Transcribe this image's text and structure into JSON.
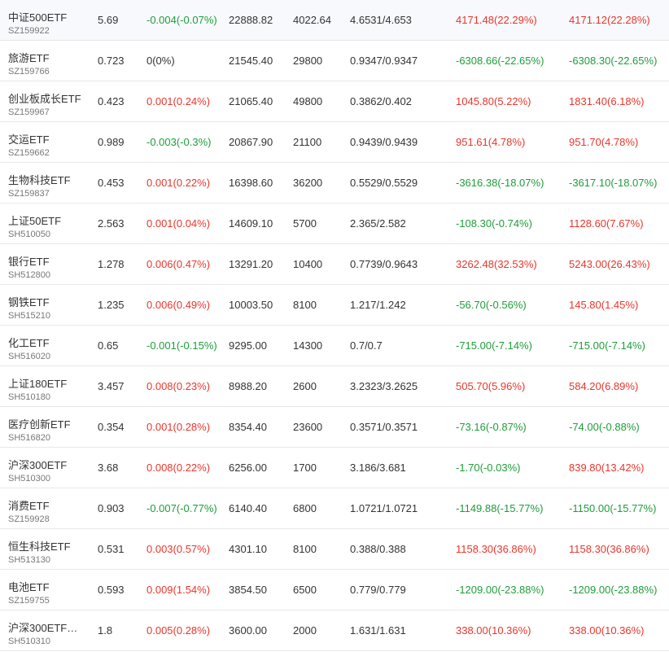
{
  "colors": {
    "up": "#e8362c",
    "down": "#1f9d3a",
    "flat": "#333333"
  },
  "rows": [
    {
      "name": "中证500ETF",
      "code": "SZ159922",
      "price": "5.69",
      "change": "-0.004(-0.07%)",
      "change_dir": "down",
      "amount": "22888.82",
      "volume": "4022.64",
      "nav": "4.6531/4.653",
      "profit1": "4171.48(22.29%)",
      "profit1_dir": "up",
      "profit2": "4171.12(22.28%)",
      "profit2_dir": "up"
    },
    {
      "name": "旅游ETF",
      "code": "SZ159766",
      "price": "0.723",
      "change": "0(0%)",
      "change_dir": "flat",
      "amount": "21545.40",
      "volume": "29800",
      "nav": "0.9347/0.9347",
      "profit1": "-6308.66(-22.65%)",
      "profit1_dir": "down",
      "profit2": "-6308.30(-22.65%)",
      "profit2_dir": "down"
    },
    {
      "name": "创业板成长ETF",
      "code": "SZ159967",
      "price": "0.423",
      "change": "0.001(0.24%)",
      "change_dir": "up",
      "amount": "21065.40",
      "volume": "49800",
      "nav": "0.3862/0.402",
      "profit1": "1045.80(5.22%)",
      "profit1_dir": "up",
      "profit2": "1831.40(6.18%)",
      "profit2_dir": "up"
    },
    {
      "name": "交运ETF",
      "code": "SZ159662",
      "price": "0.989",
      "change": "-0.003(-0.3%)",
      "change_dir": "down",
      "amount": "20867.90",
      "volume": "21100",
      "nav": "0.9439/0.9439",
      "profit1": "951.61(4.78%)",
      "profit1_dir": "up",
      "profit2": "951.70(4.78%)",
      "profit2_dir": "up"
    },
    {
      "name": "生物科技ETF",
      "code": "SZ159837",
      "price": "0.453",
      "change": "0.001(0.22%)",
      "change_dir": "up",
      "amount": "16398.60",
      "volume": "36200",
      "nav": "0.5529/0.5529",
      "profit1": "-3616.38(-18.07%)",
      "profit1_dir": "down",
      "profit2": "-3617.10(-18.07%)",
      "profit2_dir": "down"
    },
    {
      "name": "上证50ETF",
      "code": "SH510050",
      "price": "2.563",
      "change": "0.001(0.04%)",
      "change_dir": "up",
      "amount": "14609.10",
      "volume": "5700",
      "nav": "2.365/2.582",
      "profit1": "-108.30(-0.74%)",
      "profit1_dir": "down",
      "profit2": "1128.60(7.67%)",
      "profit2_dir": "up"
    },
    {
      "name": "银行ETF",
      "code": "SH512800",
      "price": "1.278",
      "change": "0.006(0.47%)",
      "change_dir": "up",
      "amount": "13291.20",
      "volume": "10400",
      "nav": "0.7739/0.9643",
      "profit1": "3262.48(32.53%)",
      "profit1_dir": "up",
      "profit2": "5243.00(26.43%)",
      "profit2_dir": "up"
    },
    {
      "name": "钢铁ETF",
      "code": "SH515210",
      "price": "1.235",
      "change": "0.006(0.49%)",
      "change_dir": "up",
      "amount": "10003.50",
      "volume": "8100",
      "nav": "1.217/1.242",
      "profit1": "-56.70(-0.56%)",
      "profit1_dir": "down",
      "profit2": "145.80(1.45%)",
      "profit2_dir": "up"
    },
    {
      "name": "化工ETF",
      "code": "SH516020",
      "price": "0.65",
      "change": "-0.001(-0.15%)",
      "change_dir": "down",
      "amount": "9295.00",
      "volume": "14300",
      "nav": "0.7/0.7",
      "profit1": "-715.00(-7.14%)",
      "profit1_dir": "down",
      "profit2": "-715.00(-7.14%)",
      "profit2_dir": "down"
    },
    {
      "name": "上证180ETF",
      "code": "SH510180",
      "price": "3.457",
      "change": "0.008(0.23%)",
      "change_dir": "up",
      "amount": "8988.20",
      "volume": "2600",
      "nav": "3.2323/3.2625",
      "profit1": "505.70(5.96%)",
      "profit1_dir": "up",
      "profit2": "584.20(6.89%)",
      "profit2_dir": "up"
    },
    {
      "name": "医疗创新ETF",
      "code": "SH516820",
      "price": "0.354",
      "change": "0.001(0.28%)",
      "change_dir": "up",
      "amount": "8354.40",
      "volume": "23600",
      "nav": "0.3571/0.3571",
      "profit1": "-73.16(-0.87%)",
      "profit1_dir": "down",
      "profit2": "-74.00(-0.88%)",
      "profit2_dir": "down"
    },
    {
      "name": "沪深300ETF",
      "code": "SH510300",
      "price": "3.68",
      "change": "0.008(0.22%)",
      "change_dir": "up",
      "amount": "6256.00",
      "volume": "1700",
      "nav": "3.186/3.681",
      "profit1": "-1.70(-0.03%)",
      "profit1_dir": "down",
      "profit2": "839.80(13.42%)",
      "profit2_dir": "up"
    },
    {
      "name": "消费ETF",
      "code": "SZ159928",
      "price": "0.903",
      "change": "-0.007(-0.77%)",
      "change_dir": "down",
      "amount": "6140.40",
      "volume": "6800",
      "nav": "1.0721/1.0721",
      "profit1": "-1149.88(-15.77%)",
      "profit1_dir": "down",
      "profit2": "-1150.00(-15.77%)",
      "profit2_dir": "down"
    },
    {
      "name": "恒生科技ETF",
      "code": "SH513130",
      "price": "0.531",
      "change": "0.003(0.57%)",
      "change_dir": "up",
      "amount": "4301.10",
      "volume": "8100",
      "nav": "0.388/0.388",
      "profit1": "1158.30(36.86%)",
      "profit1_dir": "up",
      "profit2": "1158.30(36.86%)",
      "profit2_dir": "up"
    },
    {
      "name": "电池ETF",
      "code": "SZ159755",
      "price": "0.593",
      "change": "0.009(1.54%)",
      "change_dir": "up",
      "amount": "3854.50",
      "volume": "6500",
      "nav": "0.779/0.779",
      "profit1": "-1209.00(-23.88%)",
      "profit1_dir": "down",
      "profit2": "-1209.00(-23.88%)",
      "profit2_dir": "down"
    },
    {
      "name": "沪深300ETF…",
      "code": "SH510310",
      "price": "1.8",
      "change": "0.005(0.28%)",
      "change_dir": "up",
      "amount": "3600.00",
      "volume": "2000",
      "nav": "1.631/1.631",
      "profit1": "338.00(10.36%)",
      "profit1_dir": "up",
      "profit2": "338.00(10.36%)",
      "profit2_dir": "up"
    }
  ]
}
